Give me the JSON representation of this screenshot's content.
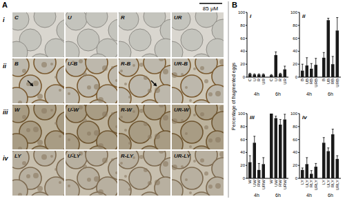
{
  "panel_a": {
    "label": "A",
    "scale_bar": "85 μM",
    "rows": [
      {
        "label": "i",
        "images": [
          "C",
          "U",
          "R",
          "UR"
        ]
      },
      {
        "label": "ii",
        "images": [
          "B",
          "U-B",
          "R-B",
          "UR-B"
        ]
      },
      {
        "label": "iii",
        "images": [
          "W",
          "U-W",
          "R-W",
          "UR-W"
        ]
      },
      {
        "label": "iv",
        "images": [
          "LY",
          "U-LY",
          "R-LY",
          "UR-LY"
        ]
      }
    ]
  },
  "panel_b": {
    "label": "B",
    "y_label": "Percentage of fragmented eggs"
  },
  "chart_data": [
    {
      "type": "bar",
      "title": "i",
      "categories": [
        "C",
        "U",
        "R",
        "UR",
        "C",
        "U",
        "R",
        "UR"
      ],
      "groups": [
        "4h",
        "6h"
      ],
      "values": [
        5,
        4,
        4,
        4,
        3,
        34,
        5,
        12
      ],
      "errors": [
        1,
        1,
        1,
        1,
        1,
        5,
        1,
        5
      ],
      "color": "#1a1a1a",
      "ylim": [
        0,
        100
      ],
      "yticks": [
        0,
        20,
        40,
        60,
        80,
        100
      ]
    },
    {
      "type": "bar",
      "title": "ii",
      "categories": [
        "B",
        "UB",
        "RB",
        "URB",
        "B",
        "UB",
        "RB",
        "URB"
      ],
      "groups": [
        "4h",
        "6h"
      ],
      "values": [
        10,
        18,
        13,
        19,
        30,
        88,
        20,
        72
      ],
      "errors": [
        10,
        12,
        8,
        10,
        8,
        3,
        12,
        20
      ],
      "color": "#1a1a1a",
      "ylim": [
        0,
        100
      ],
      "yticks": [
        0,
        20,
        40,
        60,
        80,
        100
      ]
    },
    {
      "type": "bar",
      "title": "iii",
      "categories": [
        "W",
        "UW",
        "RW",
        "URW",
        "W",
        "UW",
        "RW",
        "URW"
      ],
      "groups": [
        "4h",
        "6h"
      ],
      "values": [
        25,
        55,
        13,
        22,
        100,
        93,
        83,
        91
      ],
      "errors": [
        10,
        10,
        10,
        10,
        0,
        3,
        8,
        8
      ],
      "color": "#1a1a1a",
      "ylim": [
        0,
        100
      ],
      "yticks": [
        0,
        20,
        40,
        60,
        80,
        100
      ]
    },
    {
      "type": "bar",
      "title": "iv",
      "categories": [
        "LY",
        "ULY",
        "RLY",
        "URLY",
        "LY",
        "ULY",
        "RLY",
        "URLY"
      ],
      "groups": [
        "4h",
        "6h"
      ],
      "values": [
        13,
        22,
        7,
        18,
        55,
        42,
        68,
        30
      ],
      "errors": [
        3,
        10,
        5,
        5,
        8,
        5,
        8,
        5
      ],
      "color": "#1a1a1a",
      "ylim": [
        0,
        100
      ],
      "yticks": [
        0,
        20,
        40,
        60,
        80,
        100
      ]
    }
  ]
}
